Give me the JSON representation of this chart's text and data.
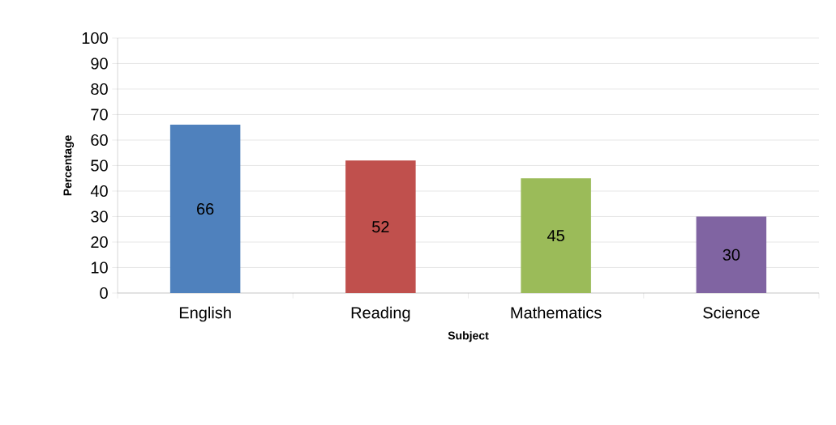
{
  "chart_data": {
    "type": "bar",
    "xlabel": "Subject",
    "ylabel": "Percentage",
    "categories": [
      "English",
      "Reading",
      "Mathematics",
      "Science"
    ],
    "values": [
      66,
      52,
      45,
      30
    ],
    "colors": [
      "#4f81bd",
      "#c0504d",
      "#9bbb59",
      "#8064a2"
    ],
    "ylim": [
      0,
      100
    ],
    "yticks": [
      0,
      10,
      20,
      30,
      40,
      50,
      60,
      70,
      80,
      90,
      100
    ],
    "grid": "y",
    "data_labels": true
  }
}
